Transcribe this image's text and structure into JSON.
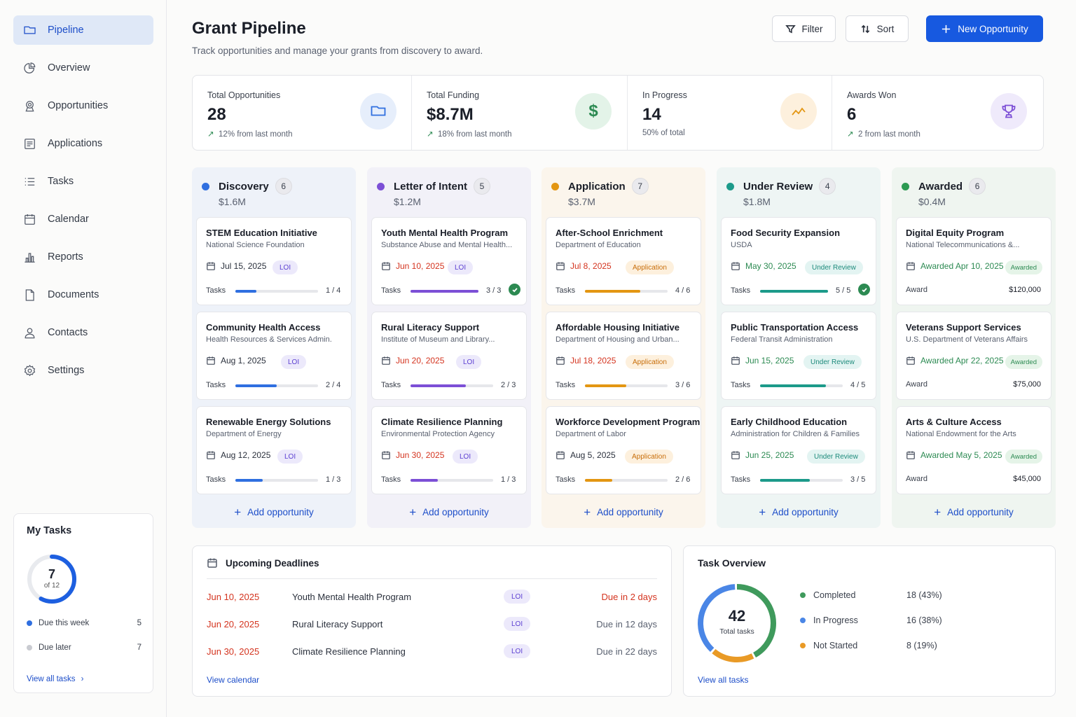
{
  "nav": [
    {
      "label": "Pipeline",
      "icon": "folder-icon",
      "active": true
    },
    {
      "label": "Overview",
      "icon": "chart-pie-icon"
    },
    {
      "label": "Opportunities",
      "icon": "award-icon"
    },
    {
      "label": "Applications",
      "icon": "file-list-icon"
    },
    {
      "label": "Tasks",
      "icon": "list-icon"
    },
    {
      "label": "Calendar",
      "icon": "calendar-icon"
    },
    {
      "label": "Reports",
      "icon": "bar-chart-icon"
    },
    {
      "label": "Documents",
      "icon": "document-icon"
    },
    {
      "label": "Contacts",
      "icon": "user-icon"
    },
    {
      "label": "Settings",
      "icon": "gear-icon"
    }
  ],
  "my_tasks": {
    "title": "My Tasks",
    "done": "7",
    "of_label": "of 12",
    "progress": 0.58,
    "rows": [
      {
        "label": "Due this week",
        "count": "5",
        "color": "#2f6fe0"
      },
      {
        "label": "Due later",
        "count": "7",
        "color": "#c9cbd1"
      }
    ],
    "link": "View all tasks"
  },
  "header": {
    "title": "Grant Pipeline",
    "subtitle": "Track opportunities and manage your grants from discovery to award.",
    "filter_label": "Filter",
    "sort_label": "Sort",
    "new_label": "New Opportunity"
  },
  "stats": [
    {
      "label": "Total Opportunities",
      "value": "28",
      "trend": "12% from last month",
      "up": true,
      "icon": "folder-icon",
      "icon_bg": "#e6eefb",
      "icon_color": "#2f6fe0"
    },
    {
      "label": "Total Funding",
      "value": "$8.7M",
      "trend": "18% from last month",
      "up": true,
      "icon": "dollar-icon",
      "icon_bg": "#e3f3e8",
      "icon_color": "#2c8a52",
      "glyph": "$"
    },
    {
      "label": "In Progress",
      "value": "14",
      "trend": "50% of total",
      "up": false,
      "icon": "trend-icon",
      "icon_bg": "#fdf0dd",
      "icon_color": "#e39612"
    },
    {
      "label": "Awards Won",
      "value": "6",
      "trend": "2 from last month",
      "up": true,
      "icon": "trophy-icon",
      "icon_bg": "#efeafb",
      "icon_color": "#7c4fd6"
    }
  ],
  "columns": [
    {
      "name": "Discovery",
      "count": "6",
      "amount": "$1.6M",
      "color": "#2f6fe0",
      "bg": "#eef2f9",
      "add": "Add opportunity",
      "cards": [
        {
          "title": "STEM Education Initiative",
          "org": "National Science Foundation",
          "date": "Jul 15, 2025",
          "badge": "LOI",
          "tasks": "Tasks",
          "done": 1,
          "total": 4,
          "progress_text": "1 / 4"
        },
        {
          "title": "Community Health Access",
          "org": "Health Resources & Services Admin.",
          "date": "Aug 1, 2025",
          "badge": "LOI",
          "tasks": "Tasks",
          "done": 2,
          "total": 4,
          "progress_text": "2 / 4"
        },
        {
          "title": "Renewable Energy Solutions",
          "org": "Department of Energy",
          "date": "Aug 12, 2025",
          "badge": "LOI",
          "tasks": "Tasks",
          "done": 1,
          "total": 3,
          "progress_text": "1 / 3"
        }
      ]
    },
    {
      "name": "Letter of Intent",
      "count": "5",
      "amount": "$1.2M",
      "color": "#7c4fd6",
      "bg": "#f2f1f8",
      "add": "Add opportunity",
      "cards": [
        {
          "title": "Youth Mental Health Program",
          "org": "Substance Abuse and Mental Health...",
          "date": "Jun 10, 2025",
          "date_color": "red",
          "badge": "LOI",
          "tasks": "Tasks",
          "done": 3,
          "total": 3,
          "progress_text": "3 / 3",
          "complete": true
        },
        {
          "title": "Rural Literacy Support",
          "org": "Institute of Museum and Library...",
          "date": "Jun 20, 2025",
          "date_color": "red",
          "badge": "LOI",
          "tasks": "Tasks",
          "done": 2,
          "total": 3,
          "progress_text": "2 / 3"
        },
        {
          "title": "Climate Resilience Planning",
          "org": "Environmental Protection Agency",
          "date": "Jun 30, 2025",
          "date_color": "red",
          "badge": "LOI",
          "tasks": "Tasks",
          "done": 1,
          "total": 3,
          "progress_text": "1 / 3"
        }
      ]
    },
    {
      "name": "Application",
      "count": "7",
      "amount": "$3.7M",
      "color": "#e39612",
      "bg": "#fbf5ec",
      "add": "Add opportunity",
      "cards": [
        {
          "title": "After-School Enrichment",
          "org": "Department of Education",
          "date": "Jul 8, 2025",
          "date_color": "red",
          "badge": "Application",
          "tasks": "Tasks",
          "done": 4,
          "total": 6,
          "progress_text": "4 / 6"
        },
        {
          "title": "Affordable Housing Initiative",
          "org": "Department of Housing and Urban...",
          "date": "Jul 18, 2025",
          "date_color": "red",
          "badge": "Application",
          "tasks": "Tasks",
          "done": 3,
          "total": 6,
          "progress_text": "3 / 6"
        },
        {
          "title": "Workforce Development Program",
          "org": "Department of Labor",
          "date": "Aug 5, 2025",
          "badge": "Application",
          "tasks": "Tasks",
          "done": 2,
          "total": 6,
          "progress_text": "2 / 6"
        }
      ]
    },
    {
      "name": "Under Review",
      "count": "4",
      "amount": "$1.8M",
      "color": "#1c9a8a",
      "bg": "#eef5f4",
      "add": "Add opportunity",
      "cards": [
        {
          "title": "Food Security Expansion",
          "org": "USDA",
          "date": "May 30, 2025",
          "date_color": "green",
          "badge": "Under Review",
          "tasks": "Tasks",
          "done": 5,
          "total": 5,
          "progress_text": "5 / 5",
          "complete": true
        },
        {
          "title": "Public Transportation Access",
          "org": "Federal Transit Administration",
          "date": "Jun 15, 2025",
          "date_color": "green",
          "badge": "Under Review",
          "tasks": "Tasks",
          "done": 4,
          "total": 5,
          "progress_text": "4 / 5"
        },
        {
          "title": "Early Childhood Education",
          "org": "Administration for Children & Families",
          "date": "Jun 25, 2025",
          "date_color": "green",
          "badge": "Under Review",
          "tasks": "Tasks",
          "done": 3,
          "total": 5,
          "progress_text": "3 / 5"
        }
      ]
    },
    {
      "name": "Awarded",
      "count": "6",
      "amount": "$0.4M",
      "color": "#2c9a52",
      "bg": "#eff5f0",
      "add": "Add opportunity",
      "cards": [
        {
          "title": "Digital Equity Program",
          "org": "National Telecommunications &...",
          "date": "Awarded Apr 10, 2025",
          "date_color": "green",
          "badge": "Awarded",
          "award_label": "Award",
          "award": "$120,000"
        },
        {
          "title": "Veterans Support Services",
          "org": "U.S. Department of Veterans Affairs",
          "date": "Awarded Apr 22, 2025",
          "date_color": "green",
          "badge": "Awarded",
          "award_label": "Award",
          "award": "$75,000"
        },
        {
          "title": "Arts & Culture Access",
          "org": "National Endowment for the Arts",
          "date": "Awarded May 5, 2025",
          "date_color": "green",
          "badge": "Awarded",
          "award_label": "Award",
          "award": "$45,000"
        }
      ]
    }
  ],
  "deadlines": {
    "title": "Upcoming Deadlines",
    "rows": [
      {
        "date": "Jun 10, 2025",
        "name": "Youth Mental Health Program",
        "badge": "LOI",
        "due": "Due in 2 days",
        "urgent": true
      },
      {
        "date": "Jun 20, 2025",
        "name": "Rural Literacy Support",
        "badge": "LOI",
        "due": "Due in 12 days"
      },
      {
        "date": "Jun 30, 2025",
        "name": "Climate Resilience Planning",
        "badge": "LOI",
        "due": "Due in 22 days"
      }
    ],
    "link": "View calendar"
  },
  "task_overview": {
    "title": "Task Overview",
    "total": "42",
    "total_label": "Total tasks",
    "rows": [
      {
        "label": "Completed",
        "value": "18 (43%)",
        "count": 18,
        "color": "#3f9a5c"
      },
      {
        "label": "In Progress",
        "value": "16 (38%)",
        "count": 16,
        "color": "#4a86e6"
      },
      {
        "label": "Not Started",
        "value": "8 (19%)",
        "count": 8,
        "color": "#e99a26"
      }
    ],
    "link": "View all tasks"
  }
}
